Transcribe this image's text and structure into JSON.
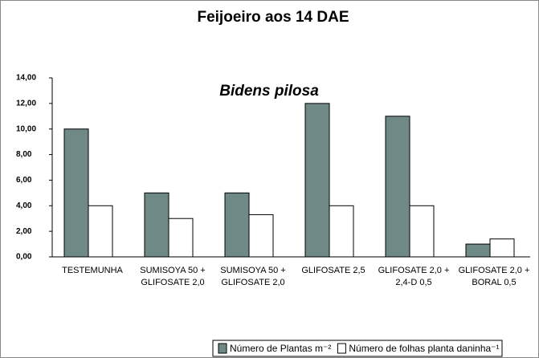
{
  "chart_data": {
    "type": "bar",
    "title": "Feijoeiro aos 14 DAE",
    "subtitle": "Bidens pilosa",
    "categories": [
      "TESTEMUNHA",
      "SUMISOYA 50 + GLIFOSATE 2,0",
      "SUMISOYA 50 + GLIFOSATE 2,0",
      "GLIFOSATE 2,5",
      "GLIFOSATE 2,0 + 2,4-D 0,5",
      "GLIFOSATE 2,0 + BORAL 0,5"
    ],
    "series": [
      {
        "name": "Número de Plantas m⁻²",
        "color": "#6f8a86",
        "values": [
          10,
          5,
          5,
          12,
          11,
          1
        ]
      },
      {
        "name": "Número de folhas planta daninha⁻¹",
        "color": "#ffffff",
        "values": [
          4,
          3,
          3.3,
          4,
          4,
          1.4
        ]
      }
    ],
    "ylim": [
      0,
      14
    ],
    "yticks": [
      {
        "value": 0,
        "label": "0,00"
      },
      {
        "value": 2,
        "label": "2,00"
      },
      {
        "value": 4,
        "label": "4,00"
      },
      {
        "value": 6,
        "label": "6,00"
      },
      {
        "value": 8,
        "label": "8,00"
      },
      {
        "value": 10,
        "label": "10,00"
      },
      {
        "value": 12,
        "label": "12,00"
      },
      {
        "value": 14,
        "label": "14,00"
      }
    ],
    "grid": false
  }
}
